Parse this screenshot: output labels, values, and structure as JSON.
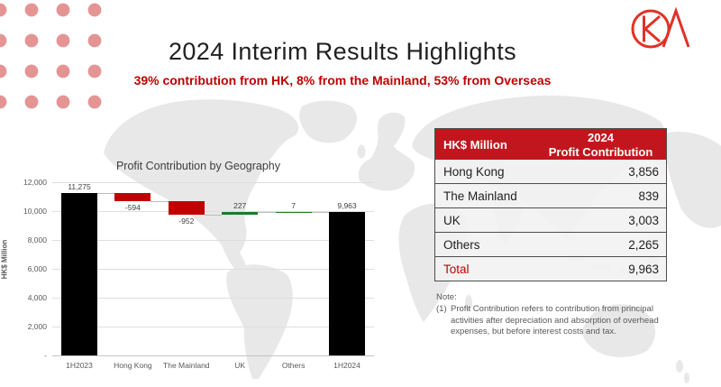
{
  "header": {
    "title": "2024 Interim Results Highlights",
    "subtitle": "39% contribution from HK, 8% from the Mainland, 53% from Overseas"
  },
  "logo": {
    "name": "CKA company logo",
    "color": "#e03228"
  },
  "chart_data": {
    "type": "waterfall",
    "title": "Profit Contribution by Geography",
    "ylabel": "HK$ Million",
    "ymax": 12000,
    "ytick_step": 2000,
    "ytick_zero_label": "-",
    "grid": true,
    "categories": [
      "1H2023",
      "Hong Kong",
      "The Mainland",
      "UK",
      "Others",
      "1H2024"
    ],
    "bars": [
      {
        "label": "1H2023",
        "value": 11275,
        "kind": "total",
        "display": "11,275",
        "label_pos": "above"
      },
      {
        "label": "Hong Kong",
        "value": -594,
        "kind": "delta",
        "display": "-594",
        "label_pos": "below"
      },
      {
        "label": "The Mainland",
        "value": -952,
        "kind": "delta",
        "display": "-952",
        "label_pos": "below"
      },
      {
        "label": "UK",
        "value": 227,
        "kind": "delta",
        "display": "227",
        "label_pos": "above"
      },
      {
        "label": "Others",
        "value": 7,
        "kind": "delta",
        "display": "7",
        "label_pos": "above"
      },
      {
        "label": "1H2024",
        "value": 9963,
        "kind": "total",
        "display": "9,963",
        "label_pos": "above"
      }
    ],
    "colors": {
      "total": "#000000",
      "increase": "#1e7a28",
      "decrease": "#c00000"
    }
  },
  "table": {
    "header": {
      "label_col": "HK$ Million",
      "value_col_line1": "2024",
      "value_col_line2": "Profit Contribution"
    },
    "header_bg": "#c1161d",
    "rows": [
      {
        "label": "Hong Kong",
        "value": "3,856"
      },
      {
        "label": "The Mainland",
        "value": "839"
      },
      {
        "label": "UK",
        "value": "3,003"
      },
      {
        "label": "Others",
        "value": "2,265"
      },
      {
        "label": "Total",
        "value": "9,963",
        "accent": true
      }
    ],
    "accent_color": "#c00000"
  },
  "note": {
    "title": "Note:",
    "items": [
      {
        "num": "(1)",
        "text": "Profit Contribution refers to contribution from principal activities after depreciation and absorption of overhead expenses, but before interest costs and tax."
      }
    ]
  }
}
